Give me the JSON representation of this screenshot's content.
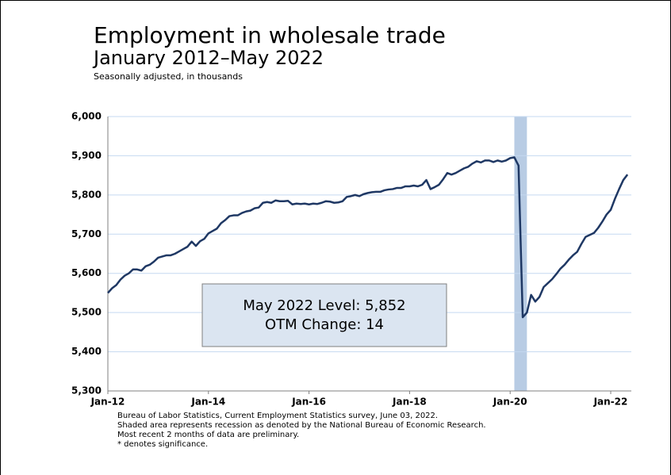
{
  "chart_data": {
    "type": "line",
    "title": "Employment in wholesale trade",
    "subtitle": "January 2012–May 2022",
    "y_label": "Seasonally adjusted, in thousands",
    "categories": [
      "Jan-12",
      null,
      null,
      null,
      null,
      null,
      null,
      null,
      null,
      null,
      null,
      null,
      null,
      null,
      null,
      null,
      null,
      null,
      null,
      null,
      null,
      null,
      null,
      null,
      "Jan-14",
      null,
      null,
      null,
      null,
      null,
      null,
      null,
      null,
      null,
      null,
      null,
      null,
      null,
      null,
      null,
      null,
      null,
      null,
      null,
      null,
      null,
      null,
      null,
      "Jan-16",
      null,
      null,
      null,
      null,
      null,
      null,
      null,
      null,
      null,
      null,
      null,
      null,
      null,
      null,
      null,
      null,
      null,
      null,
      null,
      null,
      null,
      null,
      null,
      "Jan-18",
      null,
      null,
      null,
      null,
      null,
      null,
      null,
      null,
      null,
      null,
      null,
      null,
      null,
      null,
      null,
      null,
      null,
      null,
      null,
      null,
      null,
      null,
      null,
      "Jan-20",
      null,
      null,
      null,
      null,
      null,
      null,
      null,
      null,
      null,
      null,
      null,
      null,
      null,
      null,
      null,
      null,
      null,
      null,
      null,
      null,
      null,
      null,
      null,
      "Jan-22",
      null,
      null,
      null,
      null
    ],
    "series": [
      {
        "name": "Employment",
        "color": "#1f3864",
        "values": [
          5550,
          5562,
          5570,
          5584,
          5594,
          5600,
          5610,
          5610,
          5607,
          5618,
          5622,
          5630,
          5640,
          5643,
          5646,
          5646,
          5650,
          5656,
          5662,
          5668,
          5681,
          5670,
          5682,
          5688,
          5702,
          5708,
          5714,
          5728,
          5736,
          5746,
          5748,
          5748,
          5754,
          5758,
          5760,
          5766,
          5768,
          5780,
          5782,
          5780,
          5786,
          5784,
          5784,
          5785,
          5776,
          5778,
          5777,
          5778,
          5776,
          5778,
          5777,
          5780,
          5784,
          5783,
          5780,
          5781,
          5784,
          5795,
          5797,
          5800,
          5797,
          5802,
          5805,
          5807,
          5808,
          5808,
          5812,
          5814,
          5815,
          5818,
          5818,
          5822,
          5822,
          5824,
          5822,
          5826,
          5838,
          5815,
          5820,
          5826,
          5840,
          5856,
          5852,
          5856,
          5862,
          5868,
          5872,
          5880,
          5886,
          5883,
          5888,
          5888,
          5884,
          5888,
          5885,
          5888,
          5894,
          5896,
          5875,
          5488,
          5500,
          5545,
          5528,
          5540,
          5565,
          5575,
          5585,
          5598,
          5612,
          5622,
          5635,
          5646,
          5655,
          5675,
          5693,
          5698,
          5703,
          5716,
          5732,
          5750,
          5762,
          5790,
          5815,
          5838,
          5852
        ]
      }
    ],
    "shaded_range": [
      97,
      99
    ],
    "shade_color": "#b8cce4",
    "ylim": [
      5300,
      6000
    ],
    "yticks": [
      {
        "value": 5300,
        "label": "5,300"
      },
      {
        "value": 5400,
        "label": "5,400"
      },
      {
        "value": 5500,
        "label": "5,500"
      },
      {
        "value": 5600,
        "label": "5,600"
      },
      {
        "value": 5700,
        "label": "5,700"
      },
      {
        "value": 5800,
        "label": "5,800"
      },
      {
        "value": 5900,
        "label": "5,900"
      },
      {
        "value": 6000,
        "label": "6,000"
      }
    ],
    "grid": true,
    "annotation": [
      "May 2022 Level: 5,852",
      "OTM Change: 14"
    ],
    "footnotes": [
      "Bureau of Labor Statistics, Current Employment Statistics survey, June 03, 2022.",
      "Shaded area represents recession as denoted by the National Bureau of Economic Research.",
      "Most recent 2 months of data are preliminary.",
      "* denotes significance."
    ]
  }
}
